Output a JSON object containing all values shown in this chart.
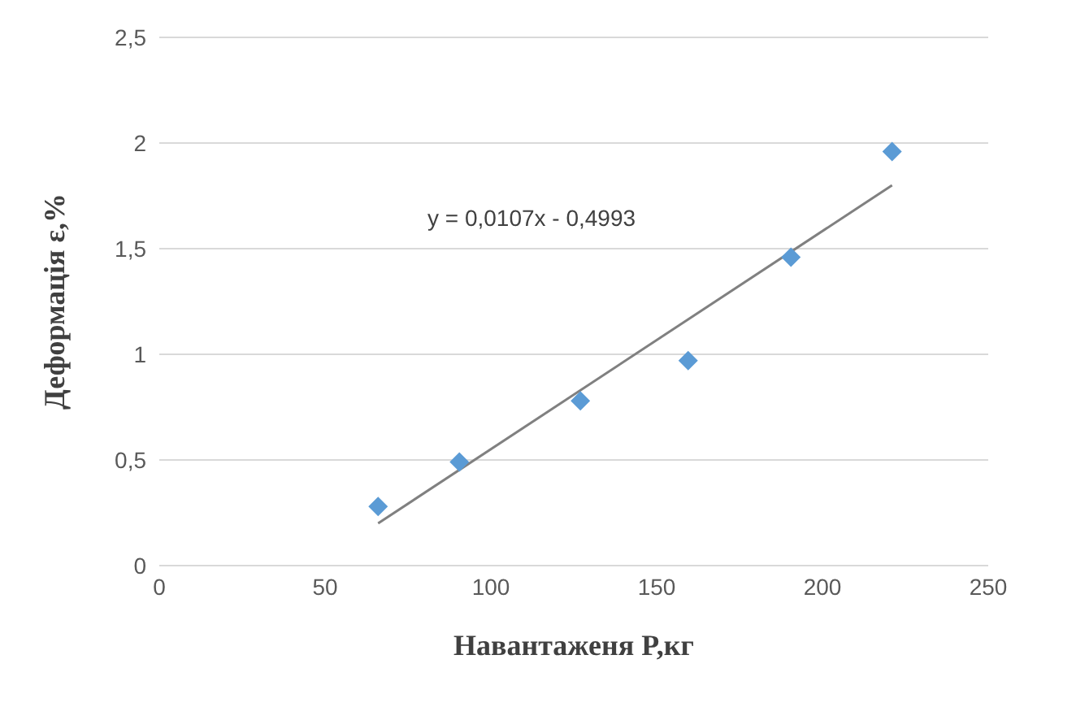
{
  "chart_data": {
    "type": "scatter",
    "xlabel": "Навантаженя P,кг",
    "ylabel": "Деформація ε,%",
    "xlim": [
      0,
      250
    ],
    "xticks": [
      0,
      50,
      100,
      150,
      200,
      250
    ],
    "ylim": [
      0,
      2.5
    ],
    "yticks": [
      0,
      {
        "value": 0.5,
        "label": "0,5"
      },
      1,
      {
        "value": 1.5,
        "label": "1,5"
      },
      2,
      {
        "value": 2.5,
        "label": "2,5"
      }
    ],
    "grid": "y",
    "legend": false,
    "annotations": [
      "y = 0,0107x - 0,4993"
    ],
    "series": [
      {
        "marker": "diamond",
        "color": "#5b9bd5",
        "x": [
          66,
          90.5,
          127,
          159.5,
          190.5,
          221
        ],
        "values": [
          0.28,
          0.49,
          0.78,
          0.97,
          1.46,
          1.96
        ]
      },
      {
        "type": "line",
        "color": "#808080",
        "x": [
          66,
          221
        ],
        "values": [
          0.2,
          1.8
        ]
      }
    ]
  }
}
